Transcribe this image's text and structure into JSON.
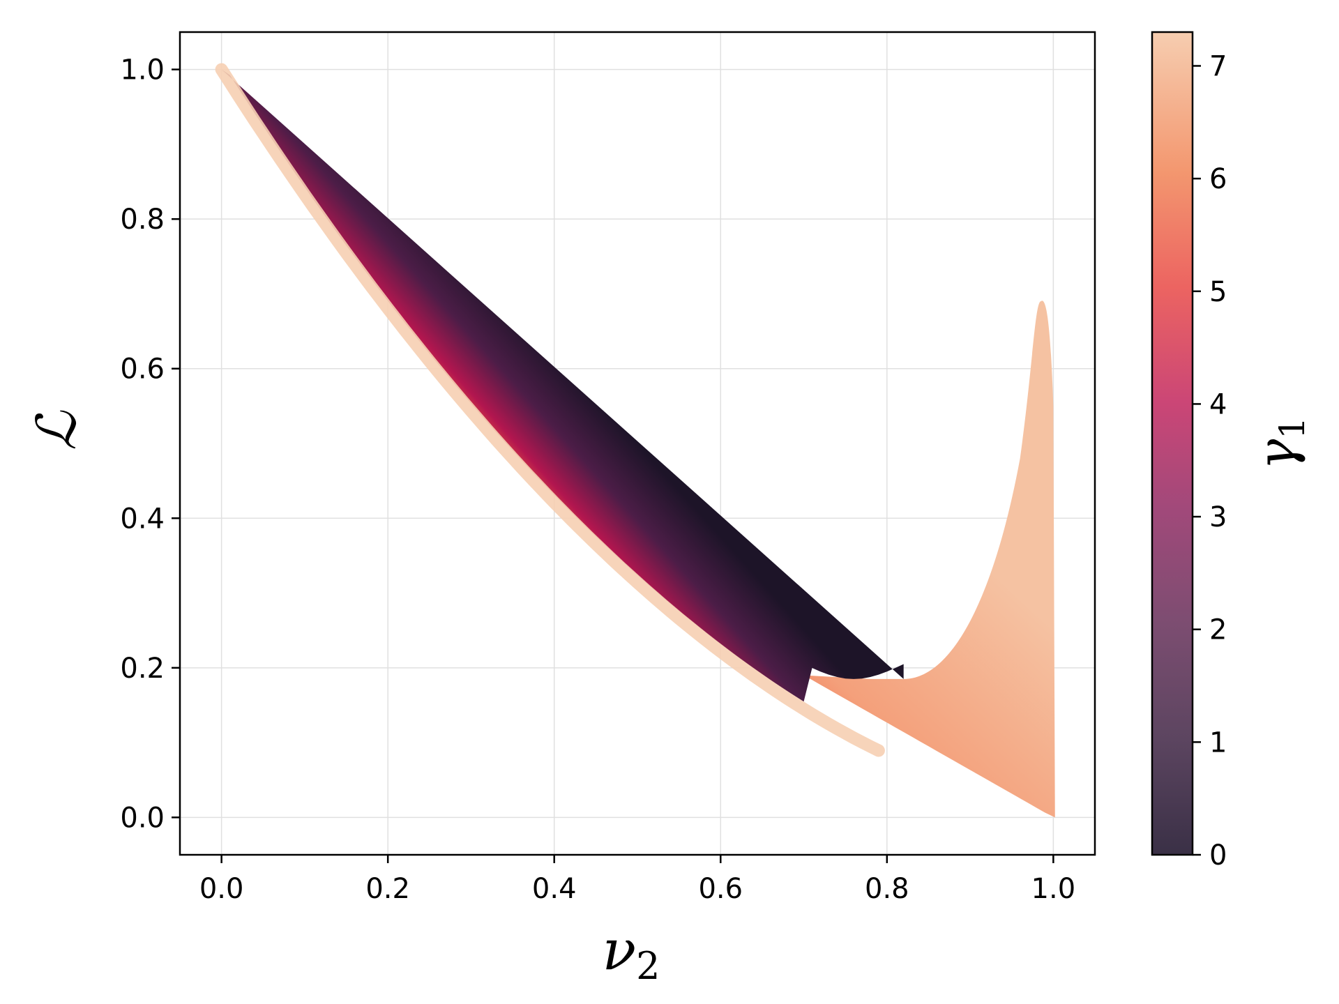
{
  "chart_data": {
    "type": "scatter",
    "title": "",
    "xlabel": "ν",
    "xlabel_sub": "2",
    "ylabel": "ℒ",
    "xlim": [
      -0.05,
      1.05
    ],
    "ylim": [
      -0.05,
      1.05
    ],
    "x_ticks": [
      0.0,
      0.2,
      0.4,
      0.6,
      0.8,
      1.0
    ],
    "x_tick_labels": [
      "0.0",
      "0.2",
      "0.4",
      "0.6",
      "0.8",
      "1.0"
    ],
    "y_ticks": [
      0.0,
      0.2,
      0.4,
      0.6,
      0.8,
      1.0
    ],
    "y_tick_labels": [
      "0.0",
      "0.2",
      "0.4",
      "0.6",
      "0.8",
      "1.0"
    ],
    "grid": true,
    "colorbar": {
      "label": "γ",
      "label_sub": "1",
      "range": [
        0,
        7.3
      ],
      "ticks": [
        0,
        1,
        2,
        3,
        4,
        5,
        6,
        7
      ],
      "tick_labels": [
        "0",
        "1",
        "2",
        "3",
        "4",
        "5",
        "6",
        "7"
      ],
      "colormap": "rocket",
      "alpha": 0.85
    },
    "region_main": {
      "description_points_upper": [
        [
          0.0,
          1.0
        ],
        [
          0.2,
          0.8
        ],
        [
          0.4,
          0.6
        ],
        [
          0.6,
          0.4
        ],
        [
          0.82,
          0.185
        ]
      ],
      "lower_boundary": [
        [
          0.0,
          1.0
        ],
        [
          0.1,
          0.78
        ],
        [
          0.2,
          0.615
        ],
        [
          0.3,
          0.5
        ],
        [
          0.4,
          0.405
        ],
        [
          0.5,
          0.325
        ],
        [
          0.6,
          0.25
        ],
        [
          0.7,
          0.185
        ],
        [
          0.8,
          0.12
        ],
        [
          0.9,
          0.06
        ],
        [
          1.0,
          0.0
        ]
      ],
      "dark_edge_gamma": 0.0,
      "light_edge_gamma": 7.3
    },
    "region_peak": {
      "peak": [
        0.985,
        0.69
      ],
      "base_left": [
        0.8,
        0.185
      ],
      "base_right": [
        1.0,
        0.0
      ],
      "gamma": 7.0
    }
  },
  "colors": {
    "gamma_0": "#3a3046",
    "gamma_1": "#5c4560",
    "gamma_2": "#7c4d71",
    "gamma_3": "#a1497a",
    "gamma_4": "#cb4676",
    "gamma_5": "#ec6461",
    "gamma_6": "#f3976f",
    "gamma_7": "#f6cdb0",
    "grid": "#e0e0e0"
  }
}
